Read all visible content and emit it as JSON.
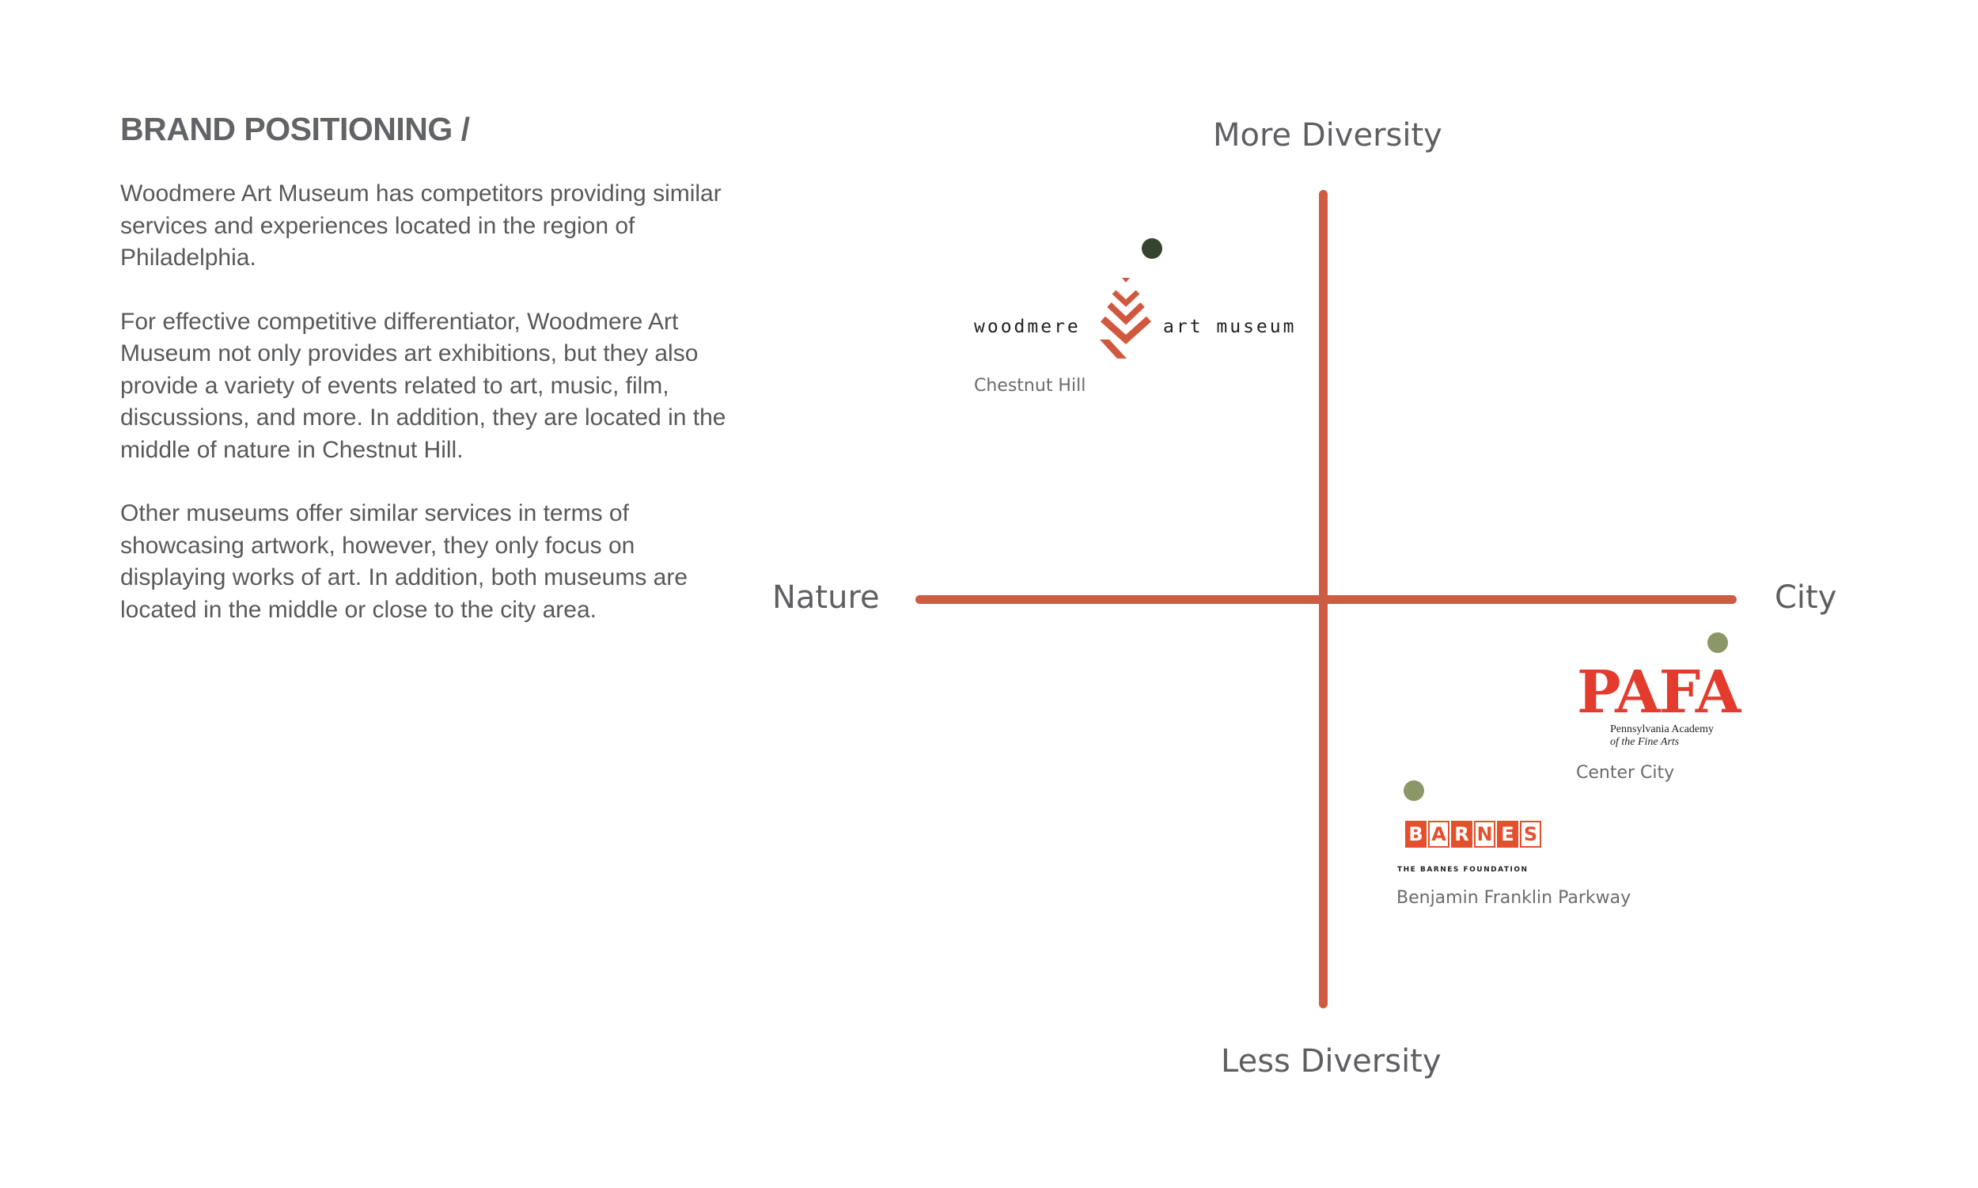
{
  "heading": "BRAND POSITIONING /",
  "paragraphs": [
    "Woodmere Art Museum has competitors providing similar services and experiences located in the region of Philadelphia.",
    "For effective competitive differentiator, Woodmere Art Museum not only provides art exhibitions, but they also provide a variety of events related to art, music, film, discussions, and more. In addition, they are located in the middle of nature in Chestnut Hill.",
    "Other museums offer similar services in terms of showcasing artwork, however, they only focus on displaying works of art. In addition, both museums are located in the middle or close to the city area."
  ],
  "axes": {
    "top": "More Diversity",
    "bottom": "Less Diversity",
    "left": "Nature",
    "right": "City"
  },
  "colors": {
    "axis": "#cd5c42",
    "woodmere_dot": "#36432f",
    "competitor_dot": "#8c9767",
    "text": "#58595b"
  },
  "museums": [
    {
      "logo_left": "woodmere",
      "logo_right": "art museum",
      "location": "Chestnut Hill",
      "icon": "woodmere-chevron-icon"
    },
    {
      "logo_word": "PAFA",
      "logo_sub_1": "Pennsylvania Academy",
      "logo_sub_2": "of the Fine Arts",
      "location": "Center City"
    },
    {
      "logo_letters": [
        "B",
        "A",
        "R",
        "N",
        "E",
        "S"
      ],
      "logo_sub": "THE BARNES FOUNDATION",
      "location": "Benjamin Franklin Parkway"
    }
  ]
}
